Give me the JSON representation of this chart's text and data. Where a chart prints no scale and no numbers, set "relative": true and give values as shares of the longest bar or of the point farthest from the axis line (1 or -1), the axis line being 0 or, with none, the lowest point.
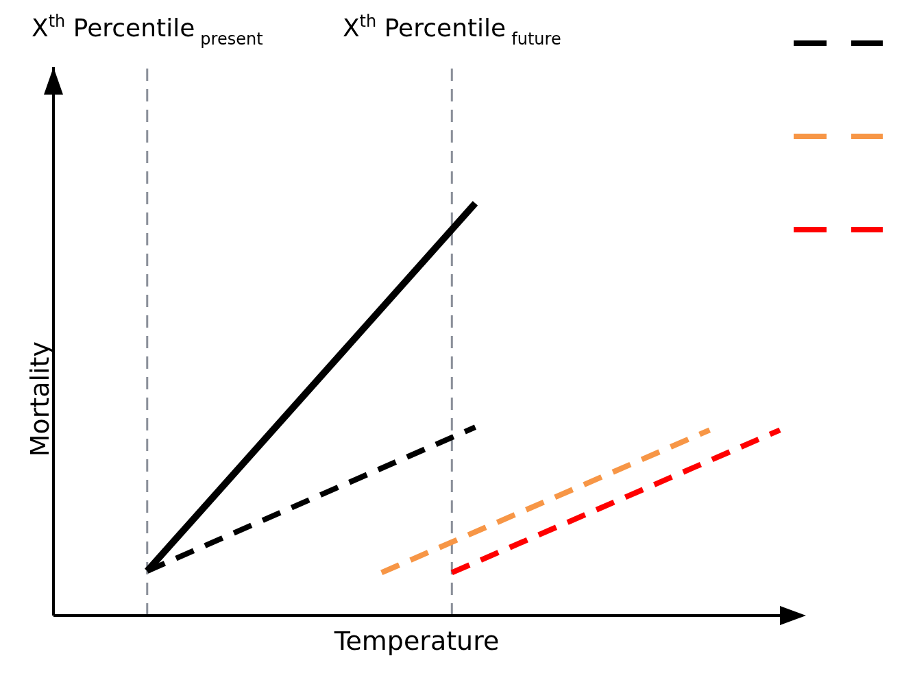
{
  "chart_data": {
    "type": "line",
    "relative": true,
    "xlabel": "Temperature",
    "ylabel": "Mortality",
    "categories": [
      null,
      null,
      null,
      null,
      null,
      null,
      null,
      null,
      null,
      null,
      null,
      null,
      null,
      null,
      null,
      null,
      null,
      null,
      null,
      null,
      null,
      null,
      null,
      null,
      null,
      null,
      null,
      null,
      null,
      null,
      null,
      null
    ],
    "series": [
      {
        "color": "#000000",
        "line_style": "solid",
        "values": [
          null,
          null,
          null,
          null,
          0.108,
          null,
          null,
          null,
          null,
          null,
          null,
          null,
          null,
          null,
          null,
          null,
          null,
          null,
          1,
          null,
          null,
          null,
          null,
          null,
          null,
          null,
          null,
          null,
          null,
          null,
          null,
          null
        ]
      },
      {
        "color": "#000000",
        "line_style": "dashed",
        "values": [
          null,
          null,
          null,
          null,
          0.108,
          null,
          null,
          null,
          null,
          null,
          null,
          null,
          null,
          null,
          null,
          null,
          null,
          null,
          0.457,
          null,
          null,
          null,
          null,
          null,
          null,
          null,
          null,
          null,
          null,
          null,
          null,
          null
        ]
      },
      {
        "color": "#f79646",
        "line_style": "dashed",
        "values": [
          null,
          null,
          null,
          null,
          null,
          null,
          null,
          null,
          null,
          null,
          null,
          null,
          null,
          null,
          0.104,
          null,
          null,
          null,
          null,
          null,
          null,
          null,
          null,
          null,
          null,
          null,
          null,
          null,
          0.45,
          null,
          null,
          null
        ]
      },
      {
        "color": "#ff0000",
        "line_style": "dashed",
        "values": [
          null,
          null,
          null,
          null,
          null,
          null,
          null,
          null,
          null,
          null,
          null,
          null,
          null,
          null,
          null,
          null,
          null,
          0.104,
          null,
          null,
          null,
          null,
          null,
          null,
          null,
          null,
          null,
          null,
          null,
          null,
          null,
          0.45
        ]
      }
    ],
    "annotations": [
      "X$^{th}$ Percentile$_{present}$",
      "X$^{th}$ Percentile$_{future}$"
    ],
    "grid": false,
    "marker": "none"
  }
}
